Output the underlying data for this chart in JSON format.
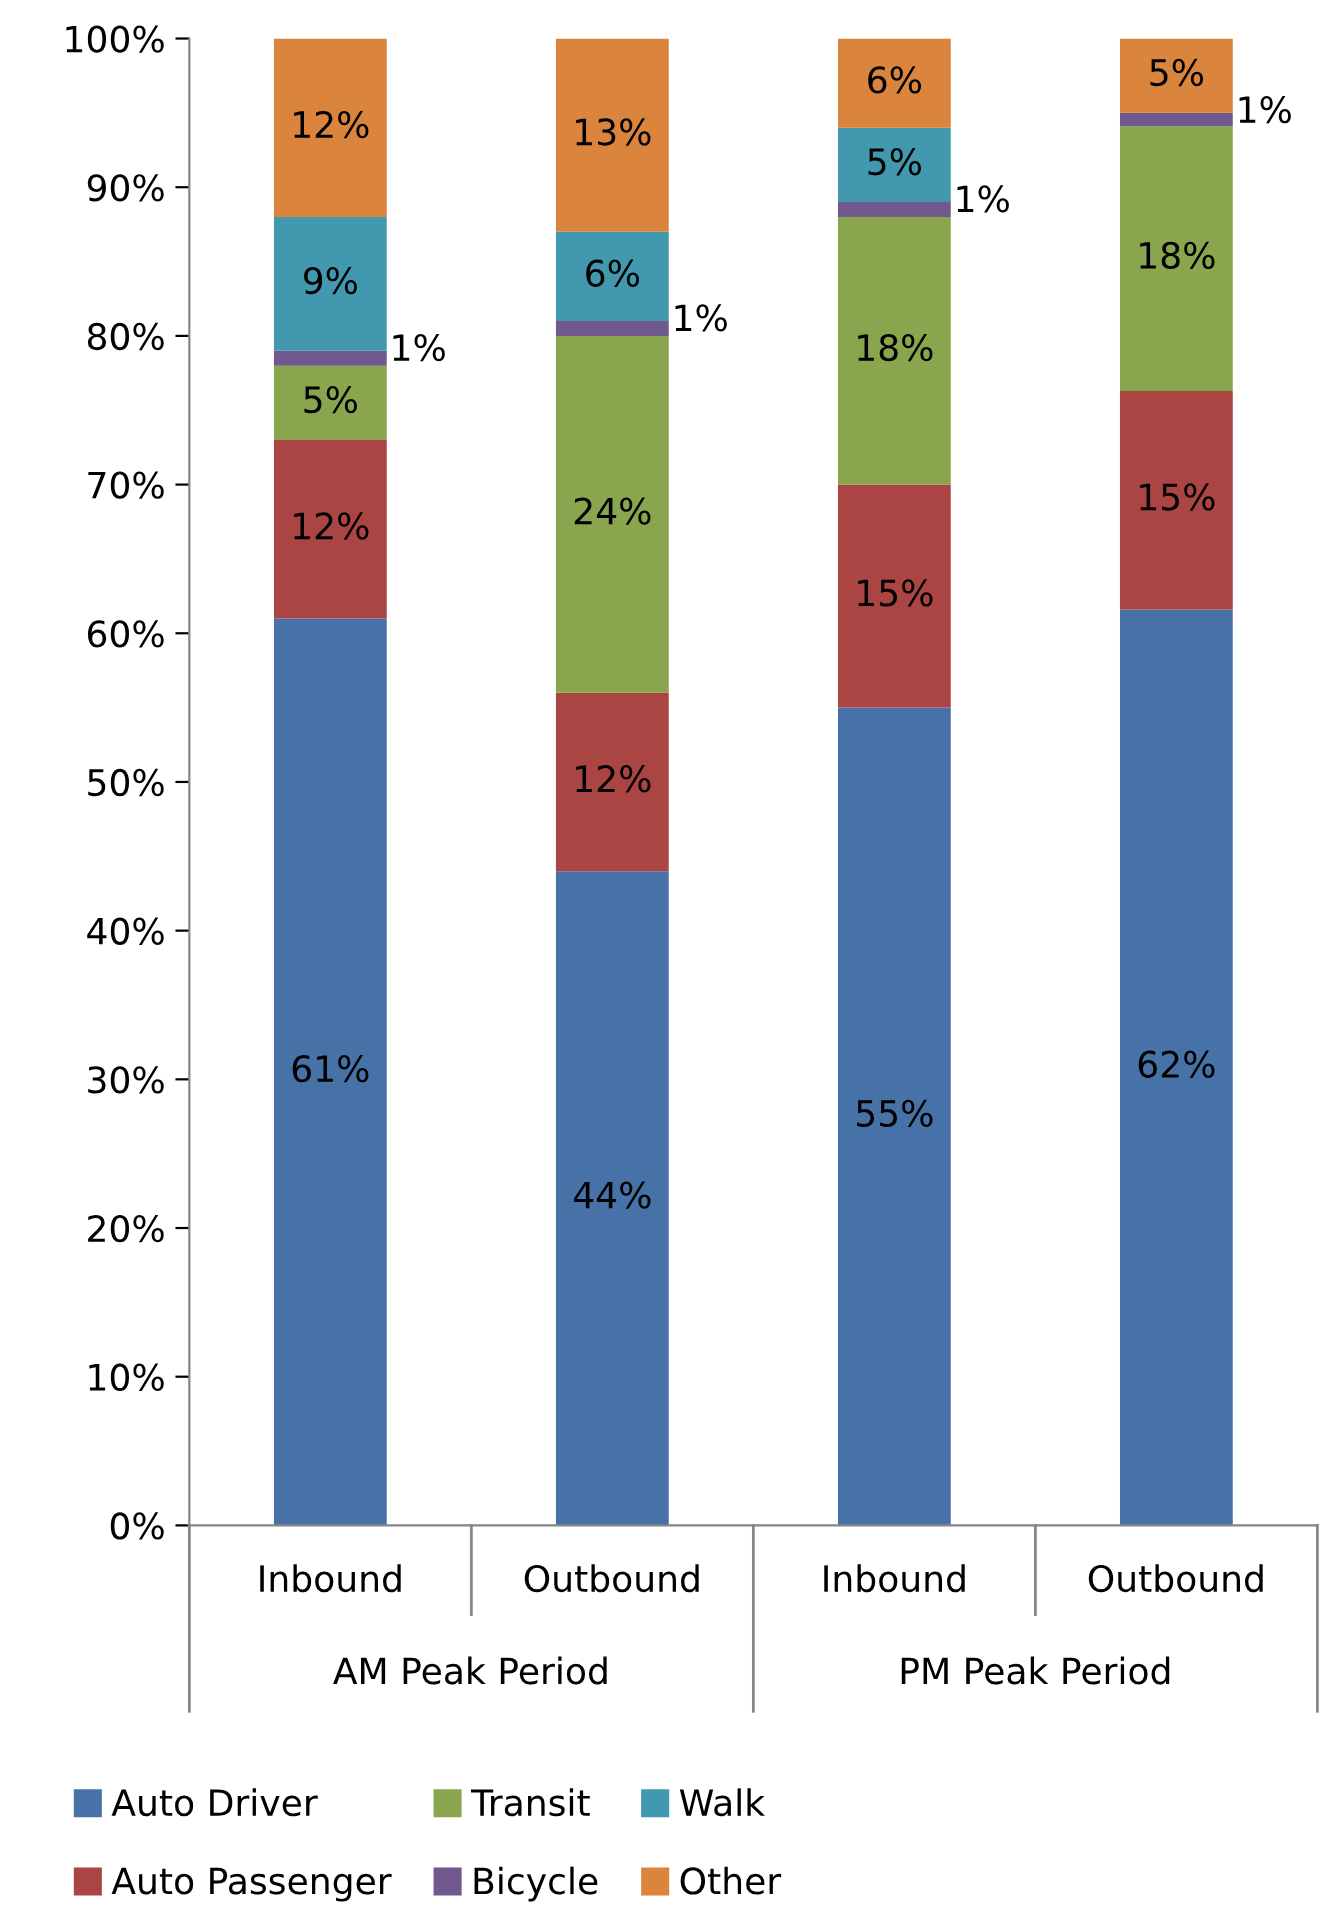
{
  "chart_data": {
    "type": "bar",
    "stacked": true,
    "categories": [
      "Inbound",
      "Outbound",
      "Inbound",
      "Outbound"
    ],
    "annotations": [
      "AM Peak Period",
      "PM Peak Period"
    ],
    "series": [
      {
        "name": "Auto Driver",
        "color": "#4672a8",
        "values": [
          61,
          44,
          55,
          61.6
        ],
        "value_labels": [
          "61%",
          "44%",
          "55%",
          "62%"
        ]
      },
      {
        "name": "Auto Passenger",
        "color": "#ab4543",
        "values": [
          12,
          12,
          15,
          14.7
        ],
        "value_labels": [
          "12%",
          "12%",
          "15%",
          "15%"
        ]
      },
      {
        "name": "Transit",
        "color": "#89a54e",
        "values": [
          5,
          24,
          18,
          17.8
        ],
        "value_labels": [
          "5%",
          "24%",
          "18%",
          "18%"
        ]
      },
      {
        "name": "Bicycle",
        "color": "#71588f",
        "values": [
          1,
          1,
          1,
          0.9
        ],
        "value_labels": [
          "1%",
          "1%",
          "1%",
          "1%"
        ]
      },
      {
        "name": "Walk",
        "color": "#4298ae",
        "values": [
          9,
          6,
          5,
          0
        ],
        "value_labels": [
          "9%",
          "6%",
          "5%",
          null
        ]
      },
      {
        "name": "Other",
        "color": "#db843d",
        "values": [
          12,
          13,
          6,
          5.0
        ],
        "value_labels": [
          "12%",
          "13%",
          "6%",
          "5%"
        ]
      }
    ],
    "ylim": [
      0,
      100
    ],
    "yticks": [
      {
        "value": 0,
        "label": "0%"
      },
      {
        "value": 10,
        "label": "10%"
      },
      {
        "value": 20,
        "label": "20%"
      },
      {
        "value": 30,
        "label": "30%"
      },
      {
        "value": 40,
        "label": "40%"
      },
      {
        "value": 50,
        "label": "50%"
      },
      {
        "value": 60,
        "label": "60%"
      },
      {
        "value": 70,
        "label": "70%"
      },
      {
        "value": 80,
        "label": "80%"
      },
      {
        "value": 90,
        "label": "90%"
      },
      {
        "value": 100,
        "label": "100%"
      }
    ],
    "grid": false,
    "legend": "bottom"
  }
}
